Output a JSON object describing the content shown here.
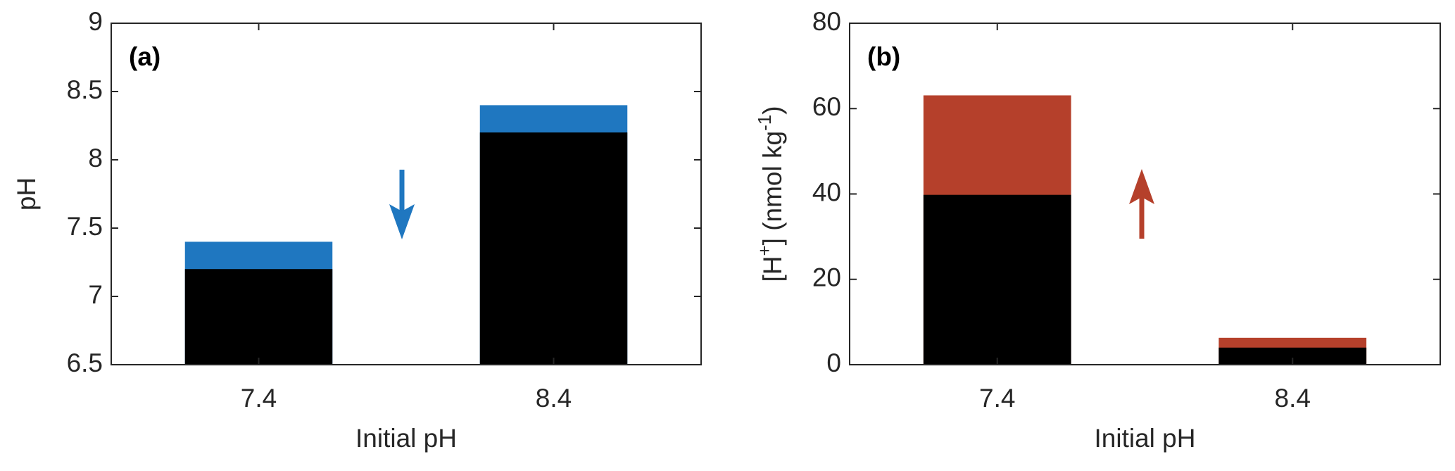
{
  "chart_data": [
    {
      "type": "bar",
      "panel_label": "(a)",
      "xlabel": "Initial pH",
      "ylabel": [
        "pH"
      ],
      "categories": [
        "7.4",
        "8.4"
      ],
      "series": [
        {
          "color": "#1f77c0",
          "values": [
            7.4,
            8.4
          ]
        },
        {
          "color": "#000000",
          "values": [
            7.2,
            8.2
          ]
        }
      ],
      "ylim": [
        6.5,
        9
      ],
      "yticks": [
        6.5,
        7,
        7.5,
        8,
        8.5,
        9
      ]
    },
    {
      "type": "bar",
      "panel_label": "(b)",
      "xlabel": "Initial pH",
      "ylabel": [
        "[H",
        "+",
        "] (nmol kg",
        "-1",
        ")"
      ],
      "categories": [
        "7.4",
        "8.4"
      ],
      "series": [
        {
          "color": "#b5402b",
          "values": [
            63.1,
            6.3
          ]
        },
        {
          "color": "#000000",
          "values": [
            39.8,
            4.0
          ]
        }
      ],
      "ylim": [
        0,
        80
      ],
      "yticks": [
        0,
        20,
        40,
        60,
        80
      ]
    }
  ]
}
